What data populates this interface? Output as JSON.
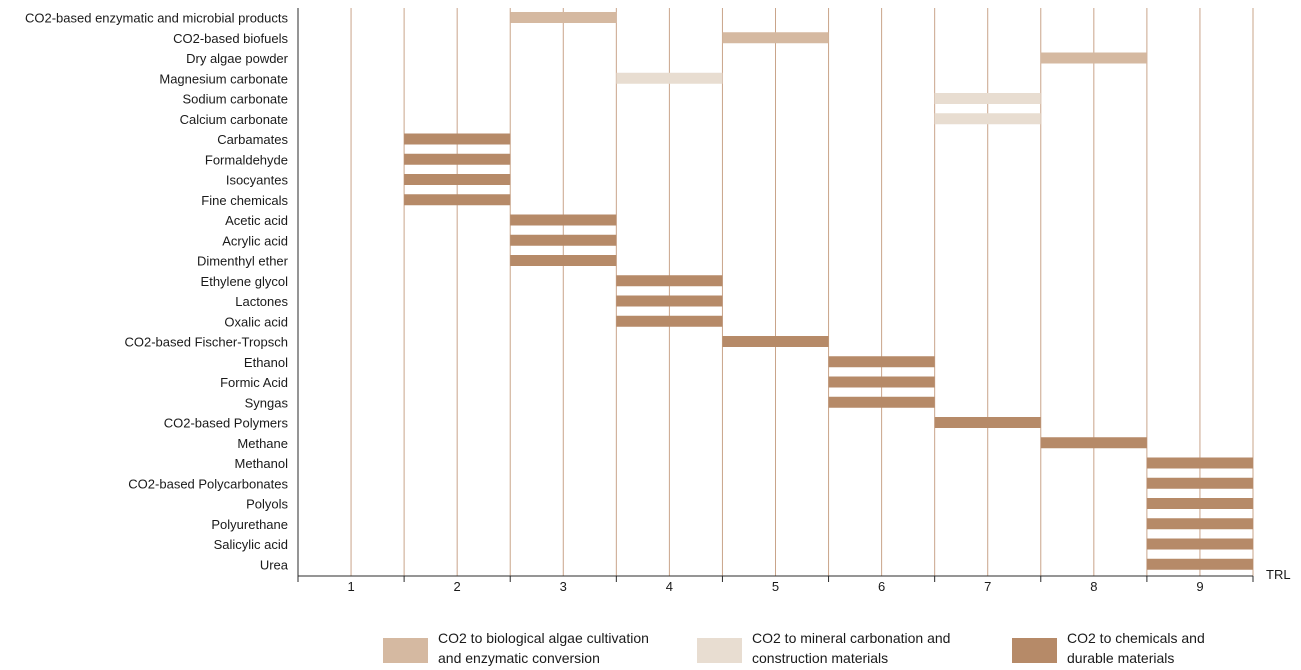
{
  "chart_data": {
    "type": "bar",
    "orientation": "horizontal-range",
    "xlabel": "TRL",
    "x_ticks": [
      "1",
      "2",
      "3",
      "4",
      "5",
      "6",
      "7",
      "8",
      "9"
    ],
    "xlim": [
      0.5,
      9.5
    ],
    "grid": "vertical",
    "legend_placement": "bottom",
    "series": [
      {
        "name": "CO2 to biological algae cultivation and enzymatic conversion",
        "color": "#d5b9a1"
      },
      {
        "name": "CO2 to mineral carbonation and construction materials",
        "color": "#e8ddd1"
      },
      {
        "name": "CO2 to chemicals and durable materials",
        "color": "#b68a68"
      }
    ],
    "rows": [
      {
        "label": "CO2-based enzymatic and microbial products",
        "trl": 3,
        "series": 0
      },
      {
        "label": "CO2-based biofuels",
        "trl": 5,
        "series": 0
      },
      {
        "label": "Dry algae powder",
        "trl": 8,
        "series": 0
      },
      {
        "label": "Magnesium carbonate",
        "trl": 4,
        "series": 1
      },
      {
        "label": "Sodium carbonate",
        "trl": 7,
        "series": 1
      },
      {
        "label": "Calcium carbonate",
        "trl": 7,
        "series": 1
      },
      {
        "label": "Carbamates",
        "trl": 2,
        "series": 2
      },
      {
        "label": "Formaldehyde",
        "trl": 2,
        "series": 2
      },
      {
        "label": "Isocyantes",
        "trl": 2,
        "series": 2
      },
      {
        "label": "Fine chemicals",
        "trl": 2,
        "series": 2
      },
      {
        "label": "Acetic acid",
        "trl": 3,
        "series": 2
      },
      {
        "label": "Acrylic acid",
        "trl": 3,
        "series": 2
      },
      {
        "label": "Dimenthyl ether",
        "trl": 3,
        "series": 2
      },
      {
        "label": "Ethylene glycol",
        "trl": 4,
        "series": 2
      },
      {
        "label": "Lactones",
        "trl": 4,
        "series": 2
      },
      {
        "label": "Oxalic acid",
        "trl": 4,
        "series": 2
      },
      {
        "label": "CO2-based Fischer-Tropsch",
        "trl": 5,
        "series": 2
      },
      {
        "label": "Ethanol",
        "trl": 6,
        "series": 2
      },
      {
        "label": "Formic Acid",
        "trl": 6,
        "series": 2
      },
      {
        "label": "Syngas",
        "trl": 6,
        "series": 2
      },
      {
        "label": "CO2-based Polymers",
        "trl": 7,
        "series": 2
      },
      {
        "label": "Methane",
        "trl": 8,
        "series": 2
      },
      {
        "label": "Methanol",
        "trl": 9,
        "series": 2
      },
      {
        "label": "CO2-based Polycarbonates",
        "trl": 9,
        "series": 2
      },
      {
        "label": "Polyols",
        "trl": 9,
        "series": 2
      },
      {
        "label": "Polyurethane",
        "trl": 9,
        "series": 2
      },
      {
        "label": "Salicylic acid",
        "trl": 9,
        "series": 2
      },
      {
        "label": "Urea",
        "trl": 9,
        "series": 2
      }
    ]
  },
  "legend": {
    "items": [
      {
        "line1": "CO2 to biological algae cultivation",
        "line2": "and enzymatic conversion",
        "color": "#d5b9a1"
      },
      {
        "line1": "CO2 to mineral carbonation and",
        "line2": "construction materials",
        "color": "#e8ddd1"
      },
      {
        "line1": "CO2 to chemicals and",
        "line2": "durable materials",
        "color": "#b68a68"
      }
    ]
  }
}
